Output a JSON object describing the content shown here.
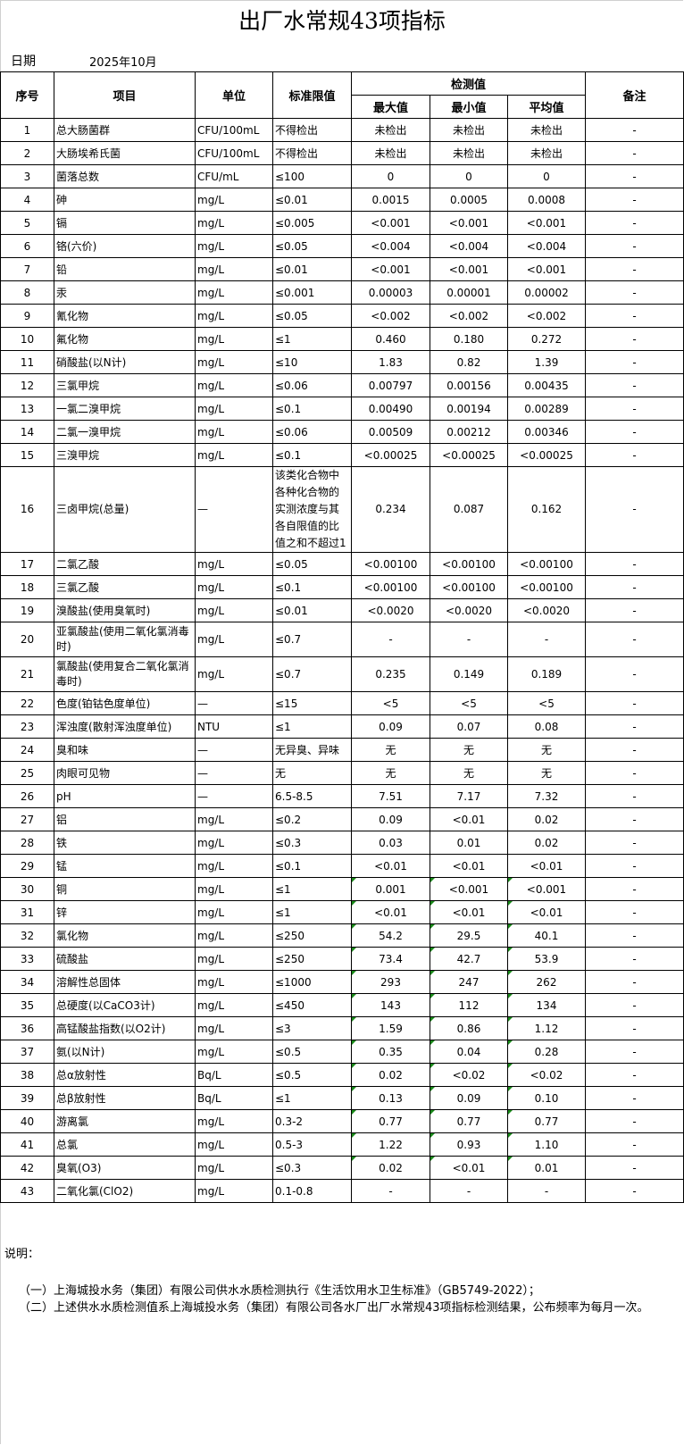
{
  "title": "出厂水常规43项指标",
  "date": {
    "label": "日期",
    "value": "2025年10月"
  },
  "headers": {
    "no": "序号",
    "item": "项目",
    "unit": "单位",
    "limit": "标准限值",
    "measured": "检测值",
    "max": "最大值",
    "min": "最小值",
    "avg": "平均值",
    "remark": "备注"
  },
  "rows": [
    [
      "1",
      "总大肠菌群",
      "CFU/100mL",
      "不得检出",
      "未检出",
      "未检出",
      "未检出",
      "-"
    ],
    [
      "2",
      "大肠埃希氏菌",
      "CFU/100mL",
      "不得检出",
      "未检出",
      "未检出",
      "未检出",
      "-"
    ],
    [
      "3",
      "菌落总数",
      "CFU/mL",
      "≤100",
      "0",
      "0",
      "0",
      "-"
    ],
    [
      "4",
      "砷",
      "mg/L",
      "≤0.01",
      "0.0015",
      "0.0005",
      "0.0008",
      "-"
    ],
    [
      "5",
      "镉",
      "mg/L",
      "≤0.005",
      "<0.001",
      "<0.001",
      "<0.001",
      "-"
    ],
    [
      "6",
      "铬(六价)",
      "mg/L",
      "≤0.05",
      "<0.004",
      "<0.004",
      "<0.004",
      "-"
    ],
    [
      "7",
      "铅",
      "mg/L",
      "≤0.01",
      "<0.001",
      "<0.001",
      "<0.001",
      "-"
    ],
    [
      "8",
      "汞",
      "mg/L",
      "≤0.001",
      "0.00003",
      "0.00001",
      "0.00002",
      "-"
    ],
    [
      "9",
      "氰化物",
      "mg/L",
      "≤0.05",
      "<0.002",
      "<0.002",
      "<0.002",
      "-"
    ],
    [
      "10",
      "氟化物",
      "mg/L",
      "≤1",
      "0.460",
      "0.180",
      "0.272",
      "-"
    ],
    [
      "11",
      "硝酸盐(以N计)",
      "mg/L",
      "≤10",
      "1.83",
      "0.82",
      "1.39",
      "-"
    ],
    [
      "12",
      "三氯甲烷",
      "mg/L",
      "≤0.06",
      "0.00797",
      "0.00156",
      "0.00435",
      "-"
    ],
    [
      "13",
      "一氯二溴甲烷",
      "mg/L",
      "≤0.1",
      "0.00490",
      "0.00194",
      "0.00289",
      "-"
    ],
    [
      "14",
      "二氯一溴甲烷",
      "mg/L",
      "≤0.06",
      "0.00509",
      "0.00212",
      "0.00346",
      "-"
    ],
    [
      "15",
      "三溴甲烷",
      "mg/L",
      "≤0.1",
      "<0.00025",
      "<0.00025",
      "<0.00025",
      "-"
    ],
    [
      "16",
      "三卤甲烷(总量)",
      "—",
      "该类化合物中各种化合物的实测浓度与其各自限值的比值之和不超过1",
      "0.234",
      "0.087",
      "0.162",
      "-"
    ],
    [
      "17",
      "二氯乙酸",
      "mg/L",
      "≤0.05",
      "<0.00100",
      "<0.00100",
      "<0.00100",
      "-"
    ],
    [
      "18",
      "三氯乙酸",
      "mg/L",
      "≤0.1",
      "<0.00100",
      "<0.00100",
      "<0.00100",
      "-"
    ],
    [
      "19",
      "溴酸盐(使用臭氧时)",
      "mg/L",
      "≤0.01",
      "<0.0020",
      "<0.0020",
      "<0.0020",
      "-"
    ],
    [
      "20",
      "亚氯酸盐(使用二氧化氯消毒时)",
      "mg/L",
      "≤0.7",
      "-",
      "-",
      "-",
      "-"
    ],
    [
      "21",
      "氯酸盐(使用复合二氧化氯消毒时)",
      "mg/L",
      "≤0.7",
      "0.235",
      "0.149",
      "0.189",
      "-"
    ],
    [
      "22",
      "色度(铂钴色度单位)",
      "—",
      "≤15",
      "<5",
      "<5",
      "<5",
      "-"
    ],
    [
      "23",
      "浑浊度(散射浑浊度单位)",
      "NTU",
      "≤1",
      "0.09",
      "0.07",
      "0.08",
      "-"
    ],
    [
      "24",
      "臭和味",
      "—",
      "无异臭、异味",
      "无",
      "无",
      "无",
      "-"
    ],
    [
      "25",
      "肉眼可见物",
      "—",
      "无",
      "无",
      "无",
      "无",
      "-"
    ],
    [
      "26",
      "pH",
      "—",
      "6.5-8.5",
      "7.51",
      "7.17",
      "7.32",
      "-"
    ],
    [
      "27",
      "铝",
      "mg/L",
      "≤0.2",
      "0.09",
      "<0.01",
      "0.02",
      "-"
    ],
    [
      "28",
      "铁",
      "mg/L",
      "≤0.3",
      "0.03",
      "0.01",
      "0.02",
      "-"
    ],
    [
      "29",
      "锰",
      "mg/L",
      "≤0.1",
      "<0.01",
      "<0.01",
      "<0.01",
      "-"
    ],
    [
      "30",
      "铜",
      "mg/L",
      "≤1",
      "0.001",
      "<0.001",
      "<0.001",
      "-"
    ],
    [
      "31",
      "锌",
      "mg/L",
      "≤1",
      "<0.01",
      "<0.01",
      "<0.01",
      "-"
    ],
    [
      "32",
      "氯化物",
      "mg/L",
      "≤250",
      "54.2",
      "29.5",
      "40.1",
      "-"
    ],
    [
      "33",
      "硫酸盐",
      "mg/L",
      "≤250",
      "73.4",
      "42.7",
      "53.9",
      "-"
    ],
    [
      "34",
      "溶解性总固体",
      "mg/L",
      "≤1000",
      "293",
      "247",
      "262",
      "-"
    ],
    [
      "35",
      "总硬度(以CaCO3计)",
      "mg/L",
      "≤450",
      "143",
      "112",
      "134",
      "-"
    ],
    [
      "36",
      "高锰酸盐指数(以O2计)",
      "mg/L",
      "≤3",
      "1.59",
      "0.86",
      "1.12",
      "-"
    ],
    [
      "37",
      "氨(以N计)",
      "mg/L",
      "≤0.5",
      "0.35",
      "0.04",
      "0.28",
      "-"
    ],
    [
      "38",
      "总α放射性",
      "Bq/L",
      "≤0.5",
      "0.02",
      "<0.02",
      "<0.02",
      "-"
    ],
    [
      "39",
      "总β放射性",
      "Bq/L",
      "≤1",
      "0.13",
      "0.09",
      "0.10",
      "-"
    ],
    [
      "40",
      "游离氯",
      "mg/L",
      "0.3-2",
      "0.77",
      "0.77",
      "0.77",
      "-"
    ],
    [
      "41",
      "总氯",
      "mg/L",
      "0.5-3",
      "1.22",
      "0.93",
      "1.10",
      "-"
    ],
    [
      "42",
      "臭氧(O3)",
      "mg/L",
      "≤0.3",
      "0.02",
      "<0.01",
      "0.01",
      "-"
    ],
    [
      "43",
      "二氧化氯(ClO2)",
      "mg/L",
      "0.1-0.8",
      "-",
      "-",
      "-",
      "-"
    ]
  ],
  "notes": {
    "heading": "说明：",
    "items": [
      "（一）上海城投水务（集团）有限公司供水水质检测执行《生活饮用水卫生标准》（GB5749-2022）；",
      "（二）上述供水水质检测值系上海城投水务（集团）有限公司各水厂出厂水常规43项指标检测结果，公布频率为每月一次。"
    ]
  },
  "colors": {
    "cell_marker": "#1a8a1a"
  }
}
